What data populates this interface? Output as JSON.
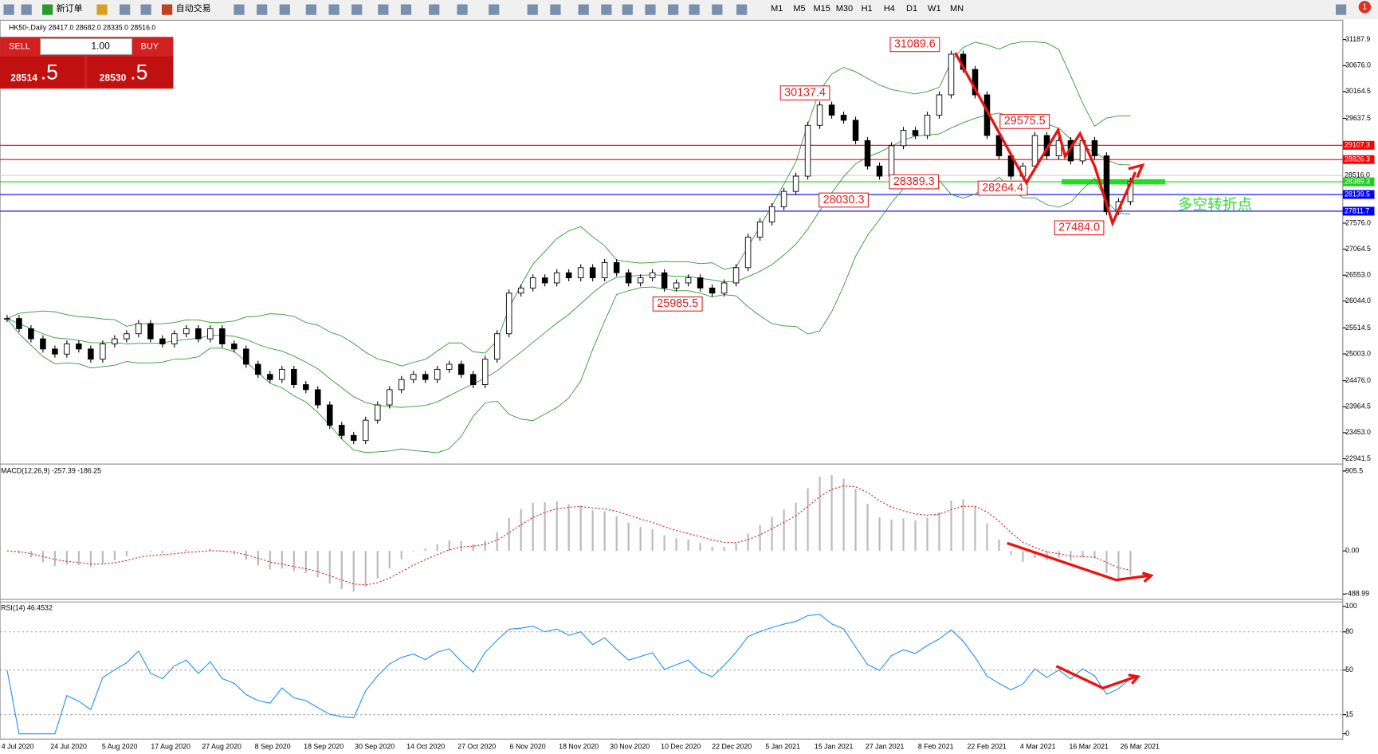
{
  "toolbar": {
    "new_order": "新订单",
    "auto_trading": "自动交易",
    "timeframes": [
      "M1",
      "M5",
      "M15",
      "M30",
      "H1",
      "H4",
      "D1",
      "W1",
      "MN"
    ],
    "alerts": "1"
  },
  "order_panel": {
    "sell": "SELL",
    "buy": "BUY",
    "lots": "1.00",
    "sell_big": "28514",
    "sell_small": ".5",
    "buy_big": "28530",
    "buy_small": ".5"
  },
  "chart": {
    "symbol_info": "HK50-,Daily 28417.0 28682.0 28335.0 28516.0",
    "ylim": [
      22941.5,
      31187.9
    ],
    "price_ticks": [
      31187.9,
      {
        "value": 30676,
        "label": "30676.0"
      },
      30164.5,
      29637.5,
      {
        "value": 27576,
        "label": "27576.0"
      },
      27064.5,
      {
        "value": 26553,
        "label": "26553.0"
      },
      {
        "value": 26044,
        "label": "26044.0"
      },
      25514.5,
      {
        "value": 25003,
        "label": "25003.0"
      },
      {
        "value": 24476,
        "label": "24476.0"
      },
      23964.5,
      {
        "value": 23453,
        "label": "23453.0"
      },
      22941.5
    ],
    "levels": [
      {
        "price": 29107.3,
        "color": "#ff0000"
      },
      {
        "price": 28826.3,
        "color": "#ff0000"
      },
      {
        "price": {
          "value": 28516,
          "label": "28516.0"
        },
        "color": "#d0d0d0"
      },
      {
        "price": 28389.3,
        "color": "#22cc22"
      },
      {
        "price": 28139.5,
        "color": "#0000ff"
      },
      {
        "price": 27811.7,
        "color": "#0000ff"
      }
    ],
    "annotations": [
      31089.6,
      30137.4,
      29575.5,
      28389.3,
      28264.4,
      28030.3,
      {
        "value": 27484,
        "label": "27484.0"
      },
      25985.5
    ],
    "note": "多空转折点",
    "closes": [
      25700,
      25500,
      25300,
      25100,
      25000,
      25200,
      25100,
      24900,
      25200,
      25300,
      25400,
      25600,
      25300,
      25200,
      25400,
      25500,
      25300,
      25500,
      25200,
      25100,
      24800,
      24600,
      24500,
      24700,
      24400,
      24300,
      24000,
      23600,
      23400,
      23300,
      23700,
      24000,
      24300,
      24500,
      24600,
      24500,
      24700,
      24800,
      24600,
      24400,
      24900,
      25400,
      26200,
      26300,
      26500,
      26400,
      26600,
      26500,
      26700,
      26500,
      26800,
      26600,
      26400,
      26500,
      26600,
      26300,
      26400,
      26500,
      26300,
      26200,
      26400,
      26700,
      27300,
      27600,
      27900,
      28200,
      28500,
      29500,
      29900,
      29700,
      29600,
      29200,
      28700,
      28500,
      29100,
      29400,
      29300,
      29700,
      30100,
      30900,
      30600,
      30100,
      29300,
      28900,
      28500,
      28700,
      29300,
      28900,
      29200,
      28800,
      29200,
      28900,
      27800,
      28000,
      28400
    ],
    "dates": [
      "4 Jul 2020",
      "24 Jul 2020",
      "5 Aug 2020",
      "17 Aug 2020",
      "27 Aug 2020",
      "8 Sep 2020",
      "18 Sep 2020",
      "30 Sep 2020",
      "14 Oct 2020",
      "27 Oct 2020",
      "6 Nov 2020",
      "18 Nov 2020",
      "30 Nov 2020",
      "10 Dec 2020",
      "22 Dec 2020",
      "5 Jan 2021",
      "15 Jan 2021",
      "27 Jan 2021",
      "8 Feb 2021",
      "22 Feb 2021",
      "4 Mar 2021",
      "16 Mar 2021",
      "26 Mar 2021"
    ],
    "macd": {
      "label": "MACD(12,26,9) -257.39 -186.25",
      "ylim": [
        -488.99,
        905.5
      ],
      "ticks": [
        905.5,
        {
          "value": 0,
          "label": "0.00"
        },
        -488.99
      ]
    },
    "rsi": {
      "label": "RSI(14) 46.4532",
      "ylim": [
        0,
        100
      ],
      "ticks": [
        100,
        80,
        50,
        15,
        0
      ]
    }
  }
}
